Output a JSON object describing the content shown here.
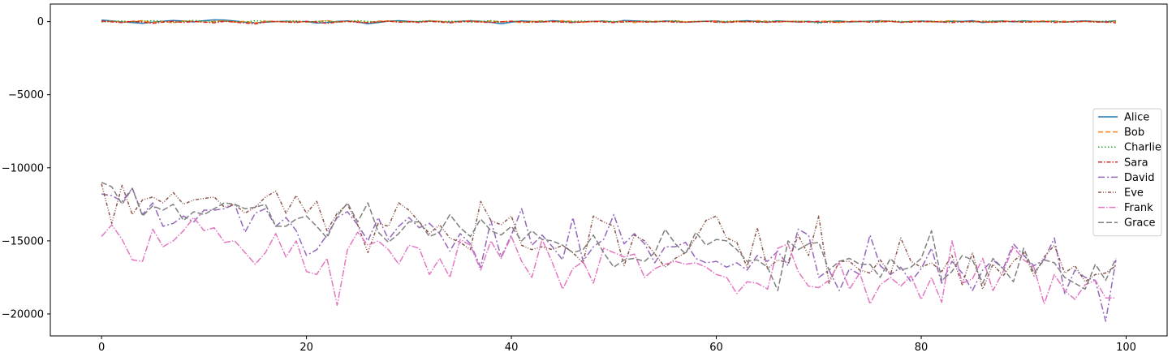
{
  "chart_data": {
    "type": "line",
    "title": "",
    "xlabel": "",
    "ylabel": "",
    "xlim": [
      -5,
      104
    ],
    "ylim": [
      -21500,
      1200
    ],
    "grid": false,
    "legend_position": "center-right",
    "x_ticks": [
      0,
      20,
      40,
      60,
      80,
      100
    ],
    "x_tick_labels": [
      "0",
      "20",
      "40",
      "60",
      "80",
      "100"
    ],
    "y_ticks": [
      0,
      -5000,
      -10000,
      -15000,
      -20000
    ],
    "y_tick_labels": [
      "0",
      "−5000",
      "−10000",
      "−15000",
      "−20000"
    ],
    "x": [
      0,
      1,
      2,
      3,
      4,
      5,
      6,
      7,
      8,
      9,
      10,
      11,
      12,
      13,
      14,
      15,
      16,
      17,
      18,
      19,
      20,
      21,
      22,
      23,
      24,
      25,
      26,
      27,
      28,
      29,
      30,
      31,
      32,
      33,
      34,
      35,
      36,
      37,
      38,
      39,
      40,
      41,
      42,
      43,
      44,
      45,
      46,
      47,
      48,
      49,
      50,
      51,
      52,
      53,
      54,
      55,
      56,
      57,
      58,
      59,
      60,
      61,
      62,
      63,
      64,
      65,
      66,
      67,
      68,
      69,
      70,
      71,
      72,
      73,
      74,
      75,
      76,
      77,
      78,
      79,
      80,
      81,
      82,
      83,
      84,
      85,
      86,
      87,
      88,
      89,
      90,
      91,
      92,
      93,
      94,
      95,
      96,
      97,
      98,
      99
    ],
    "series": [
      {
        "name": "Alice",
        "color": "#1f77b4",
        "dash": "solid",
        "values": [
          100,
          50,
          -20,
          -60,
          -120,
          -40,
          30,
          80,
          40,
          -20,
          60,
          120,
          100,
          40,
          -30,
          -80,
          -40,
          0,
          30,
          -20,
          10,
          -100,
          -60,
          10,
          50,
          -20,
          -150,
          -60,
          30,
          60,
          20,
          -10,
          40,
          10,
          -40,
          30,
          60,
          20,
          -50,
          -150,
          -30,
          40,
          10,
          -20,
          60,
          20,
          -40,
          -20,
          20,
          40,
          -30,
          80,
          50,
          10,
          -20,
          40,
          20,
          -50,
          -10,
          30,
          50,
          -40,
          20,
          60,
          10,
          -30,
          40,
          10,
          -20,
          20,
          -50,
          10,
          40,
          -20,
          0,
          30,
          60,
          20,
          -30,
          10,
          40,
          0,
          -20,
          30,
          10,
          60,
          -60,
          10,
          50,
          -20,
          40,
          10,
          -10,
          30,
          -40,
          20,
          50,
          10,
          -20,
          60
        ]
      },
      {
        "name": "Bob",
        "color": "#ff7f0e",
        "dash": "6,3",
        "values": [
          0,
          30,
          -40,
          20,
          60,
          -60,
          10,
          -80,
          40,
          30,
          -50,
          10,
          60,
          -30,
          20,
          -100,
          40,
          10,
          -20,
          30,
          -40,
          10,
          60,
          -20,
          30,
          10,
          -60,
          30,
          50,
          -20,
          10,
          -40,
          60,
          20,
          -30,
          10,
          50,
          -20,
          40,
          -10,
          30,
          -80,
          10,
          40,
          -30,
          60,
          20,
          -50,
          10,
          30,
          -20,
          40,
          -60,
          10,
          30,
          -10,
          50,
          -30,
          20,
          10,
          40,
          -20,
          30,
          -50,
          60,
          10,
          -40,
          20,
          30,
          -20,
          10,
          40,
          -60,
          30,
          10,
          -10,
          50,
          20,
          -40,
          30,
          10,
          -30,
          20,
          60,
          -20,
          10,
          30,
          -50,
          40,
          10,
          -30,
          20,
          50,
          -10,
          30,
          -40,
          20,
          10,
          -60,
          30
        ]
      },
      {
        "name": "Charlie",
        "color": "#2ca02c",
        "dash": "1.5,2.5",
        "values": [
          -20,
          10,
          40,
          -10,
          30,
          60,
          20,
          -30,
          10,
          80,
          40,
          -20,
          30,
          10,
          -40,
          60,
          20,
          -10,
          30,
          50,
          -20,
          10,
          40,
          -30,
          20,
          60,
          10,
          -20,
          40,
          10,
          -30,
          20,
          50,
          -10,
          30,
          10,
          -40,
          20,
          60,
          -20,
          10,
          30,
          -10,
          40,
          20,
          -30,
          10,
          50,
          -20,
          30,
          10,
          -40,
          20,
          40,
          -10,
          30,
          60,
          -20,
          10,
          30,
          -50,
          20,
          40,
          10,
          -30,
          20,
          50,
          -10,
          30,
          10,
          -120,
          20,
          40,
          -20,
          10,
          30,
          -10,
          50,
          20,
          -30,
          10,
          40,
          -20,
          30,
          10,
          -40,
          20,
          50,
          -10,
          30,
          60,
          -20,
          10,
          40,
          -30,
          20,
          30,
          -10,
          40,
          20
        ]
      },
      {
        "name": "Sara",
        "color": "#d62728",
        "dash": "5,2,1.5,2",
        "values": [
          40,
          -20,
          -60,
          10,
          -40,
          -120,
          -30,
          20,
          -60,
          10,
          -40,
          -80,
          20,
          -30,
          -100,
          -160,
          -40,
          10,
          -30,
          -60,
          20,
          -40,
          -120,
          -30,
          10,
          -50,
          -80,
          -20,
          30,
          -40,
          -10,
          -60,
          20,
          -30,
          -80,
          -20,
          10,
          -40,
          -60,
          -20,
          30,
          -10,
          -50,
          -20,
          10,
          -40,
          -70,
          -20,
          10,
          -30,
          -60,
          -10,
          20,
          -40,
          -20,
          10,
          -50,
          -30,
          -10,
          20,
          -40,
          -60,
          -20,
          10,
          -30,
          -50,
          -10,
          20,
          -40,
          -20,
          10,
          -60,
          -30,
          -10,
          20,
          -40,
          -20,
          10,
          -50,
          -30,
          -10,
          20,
          -40,
          -60,
          -20,
          10,
          -30,
          -50,
          -10,
          20,
          -40,
          -20,
          10,
          -60,
          -30,
          -10,
          20,
          -40,
          -20,
          -80
        ]
      },
      {
        "name": "David",
        "color": "#9467bd",
        "dash": "8,3,2,3",
        "values": [
          -11800,
          -11900,
          -12300,
          -11400,
          -13200,
          -12400,
          -14000,
          -13800,
          -13300,
          -13700,
          -12900,
          -12900,
          -12800,
          -12500,
          -14400,
          -13100,
          -12800,
          -14000,
          -13400,
          -14300,
          -16000,
          -15600,
          -14600,
          -13400,
          -13000,
          -13900,
          -15000,
          -13400,
          -14900,
          -14000,
          -13400,
          -14100,
          -13800,
          -14500,
          -15700,
          -14500,
          -15200,
          -16800,
          -13600,
          -16100,
          -14600,
          -12800,
          -15300,
          -14600,
          -15400,
          -16300,
          -13400,
          -16400,
          -15400,
          -14900,
          -13200,
          -15200,
          -14500,
          -15200,
          -16500,
          -15400,
          -15400,
          -15100,
          -16200,
          -16500,
          -16400,
          -16800,
          -16500,
          -17000,
          -16000,
          -16400,
          -15700,
          -16700,
          -14200,
          -14600,
          -17500,
          -17000,
          -18400,
          -16900,
          -17300,
          -14600,
          -16700,
          -17300,
          -16800,
          -17800,
          -16900,
          -15500,
          -17900,
          -16400,
          -17200,
          -18400,
          -17000,
          -16300,
          -16900,
          -15200,
          -16000,
          -16700,
          -16300,
          -14800,
          -18600,
          -17000,
          -17500,
          -17700,
          -20500,
          -16300
        ]
      },
      {
        "name": "Eve",
        "color": "#8c564b",
        "dash": "4,2,1,2,1,2",
        "values": [
          -11100,
          -13800,
          -11200,
          -13200,
          -12200,
          -12000,
          -12400,
          -11700,
          -12500,
          -12200,
          -12100,
          -12000,
          -12700,
          -12500,
          -13100,
          -12700,
          -12000,
          -11600,
          -13100,
          -11900,
          -13100,
          -12300,
          -14300,
          -13100,
          -12500,
          -13900,
          -15800,
          -13800,
          -14000,
          -12400,
          -12900,
          -13700,
          -14500,
          -13900,
          -14800,
          -15100,
          -15600,
          -12300,
          -13600,
          -13900,
          -13300,
          -15300,
          -15600,
          -15400,
          -15600,
          -15300,
          -15800,
          -16500,
          -13300,
          -13700,
          -14000,
          -16700,
          -14600,
          -15000,
          -15900,
          -16800,
          -16200,
          -15800,
          -14800,
          -13600,
          -13300,
          -14800,
          -15100,
          -16800,
          -14100,
          -16900,
          -16300,
          -16500,
          -14600,
          -16000,
          -13300,
          -17900,
          -16400,
          -16400,
          -17000,
          -17200,
          -16300,
          -17300,
          -14800,
          -16400,
          -16800,
          -16500,
          -17100,
          -16000,
          -18000,
          -15800,
          -18300,
          -16600,
          -17400,
          -16400,
          -15800,
          -17400,
          -16100,
          -15300,
          -17200,
          -16700,
          -17800,
          -17300,
          -17200,
          -16700
        ]
      },
      {
        "name": "Frank",
        "color": "#e377c2",
        "dash": "8,2,1.5,2",
        "values": [
          -14700,
          -13900,
          -14900,
          -16300,
          -16400,
          -14200,
          -15400,
          -15000,
          -14300,
          -13400,
          -14300,
          -14100,
          -15100,
          -15000,
          -15800,
          -16600,
          -15800,
          -14500,
          -16100,
          -15000,
          -17100,
          -17300,
          -16200,
          -19400,
          -15600,
          -14400,
          -15300,
          -15000,
          -15600,
          -16600,
          -15300,
          -15500,
          -17300,
          -16200,
          -17500,
          -14900,
          -15300,
          -17000,
          -15000,
          -16200,
          -14700,
          -16400,
          -17500,
          -14900,
          -16500,
          -18300,
          -16900,
          -16400,
          -17900,
          -15500,
          -15800,
          -16100,
          -15900,
          -17500,
          -16900,
          -16600,
          -16400,
          -16600,
          -16500,
          -16800,
          -17300,
          -17500,
          -18600,
          -17800,
          -17900,
          -18300,
          -15500,
          -15200,
          -17100,
          -18100,
          -18200,
          -17700,
          -16500,
          -18300,
          -17200,
          -19300,
          -18000,
          -17500,
          -18100,
          -17400,
          -19000,
          -17500,
          -19200,
          -15000,
          -17900,
          -17600,
          -16200,
          -18400,
          -17100,
          -15400,
          -16300,
          -16800,
          -19300,
          -17300,
          -18400,
          -19000,
          -18000,
          -17700,
          -18900,
          -18900
        ]
      },
      {
        "name": "Grace",
        "color": "#7f7f7f",
        "dash": "7,3",
        "values": [
          -11000,
          -11300,
          -12500,
          -11400,
          -13300,
          -12600,
          -12900,
          -12500,
          -13600,
          -13000,
          -13200,
          -12800,
          -12400,
          -12500,
          -12800,
          -12700,
          -12500,
          -14000,
          -14000,
          -13500,
          -13300,
          -14000,
          -14800,
          -13300,
          -12400,
          -13700,
          -12400,
          -14400,
          -15100,
          -14500,
          -13700,
          -13700,
          -14700,
          -14400,
          -13200,
          -14100,
          -14700,
          -13500,
          -14300,
          -14600,
          -14000,
          -15000,
          -14300,
          -14900,
          -15000,
          -15300,
          -15800,
          -15600,
          -14600,
          -15800,
          -16800,
          -16300,
          -16200,
          -16400,
          -15800,
          -14200,
          -15200,
          -15900,
          -14400,
          -15300,
          -14900,
          -15000,
          -15600,
          -16400,
          -16300,
          -16800,
          -18400,
          -15000,
          -15600,
          -15200,
          -15100,
          -17000,
          -16400,
          -16200,
          -16600,
          -16600,
          -17500,
          -16200,
          -17000,
          -16800,
          -16200,
          -14300,
          -17700,
          -17100,
          -16000,
          -16300,
          -17900,
          -16200,
          -16900,
          -17800,
          -15500,
          -17200,
          -16300,
          -16500,
          -17500,
          -17900,
          -18300,
          -16600,
          -17700,
          -16200
        ]
      }
    ]
  }
}
